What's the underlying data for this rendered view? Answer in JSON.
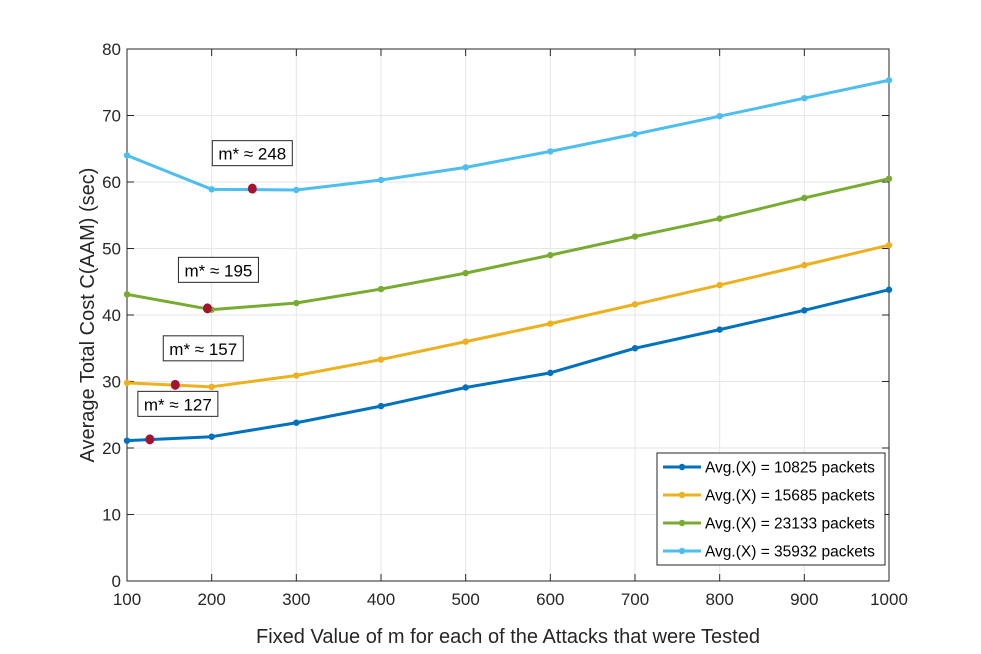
{
  "chart_data": {
    "type": "line",
    "title": "",
    "xlabel": "Fixed Value of m for each of the Attacks that were Tested",
    "ylabel": "Average Total Cost C(AAM) (sec)",
    "xlim": [
      100,
      1000
    ],
    "ylim": [
      0,
      80
    ],
    "xticks": [
      100,
      200,
      300,
      400,
      500,
      600,
      700,
      800,
      900,
      1000
    ],
    "yticks": [
      0,
      10,
      20,
      30,
      40,
      50,
      60,
      70,
      80
    ],
    "grid": true,
    "legend_position": "bottom-right",
    "x": [
      100,
      200,
      300,
      400,
      500,
      600,
      700,
      800,
      900,
      1000
    ],
    "series": [
      {
        "name": "Avg.(X) = 10825 packets",
        "color": "#0072BD",
        "values": [
          21.1,
          21.7,
          23.8,
          26.3,
          29.1,
          31.3,
          35.0,
          37.8,
          40.7,
          43.8
        ]
      },
      {
        "name": "Avg.(X) = 15685 packets",
        "color": "#EDB120",
        "values": [
          29.8,
          29.2,
          30.9,
          33.3,
          36.0,
          38.7,
          41.6,
          44.5,
          47.5,
          50.5
        ]
      },
      {
        "name": "Avg.(X) = 23133 packets",
        "color": "#77AC30",
        "values": [
          43.1,
          40.8,
          41.8,
          43.9,
          46.3,
          49.0,
          51.8,
          54.5,
          57.6,
          60.5
        ]
      },
      {
        "name": "Avg.(X) = 35932 packets",
        "color": "#4DBEEE",
        "values": [
          64.0,
          58.9,
          58.8,
          60.3,
          62.2,
          64.6,
          67.2,
          69.9,
          72.6,
          75.3
        ]
      }
    ],
    "optimum_marker_color": "#A2142F",
    "annotations": [
      {
        "text": "m* ≈ 127",
        "x": 127,
        "y": 21.3
      },
      {
        "text": "m* ≈ 157",
        "x": 157,
        "y": 29.5
      },
      {
        "text": "m* ≈ 195",
        "x": 195,
        "y": 41.0
      },
      {
        "text": "m* ≈ 248",
        "x": 248,
        "y": 59.0
      }
    ]
  }
}
